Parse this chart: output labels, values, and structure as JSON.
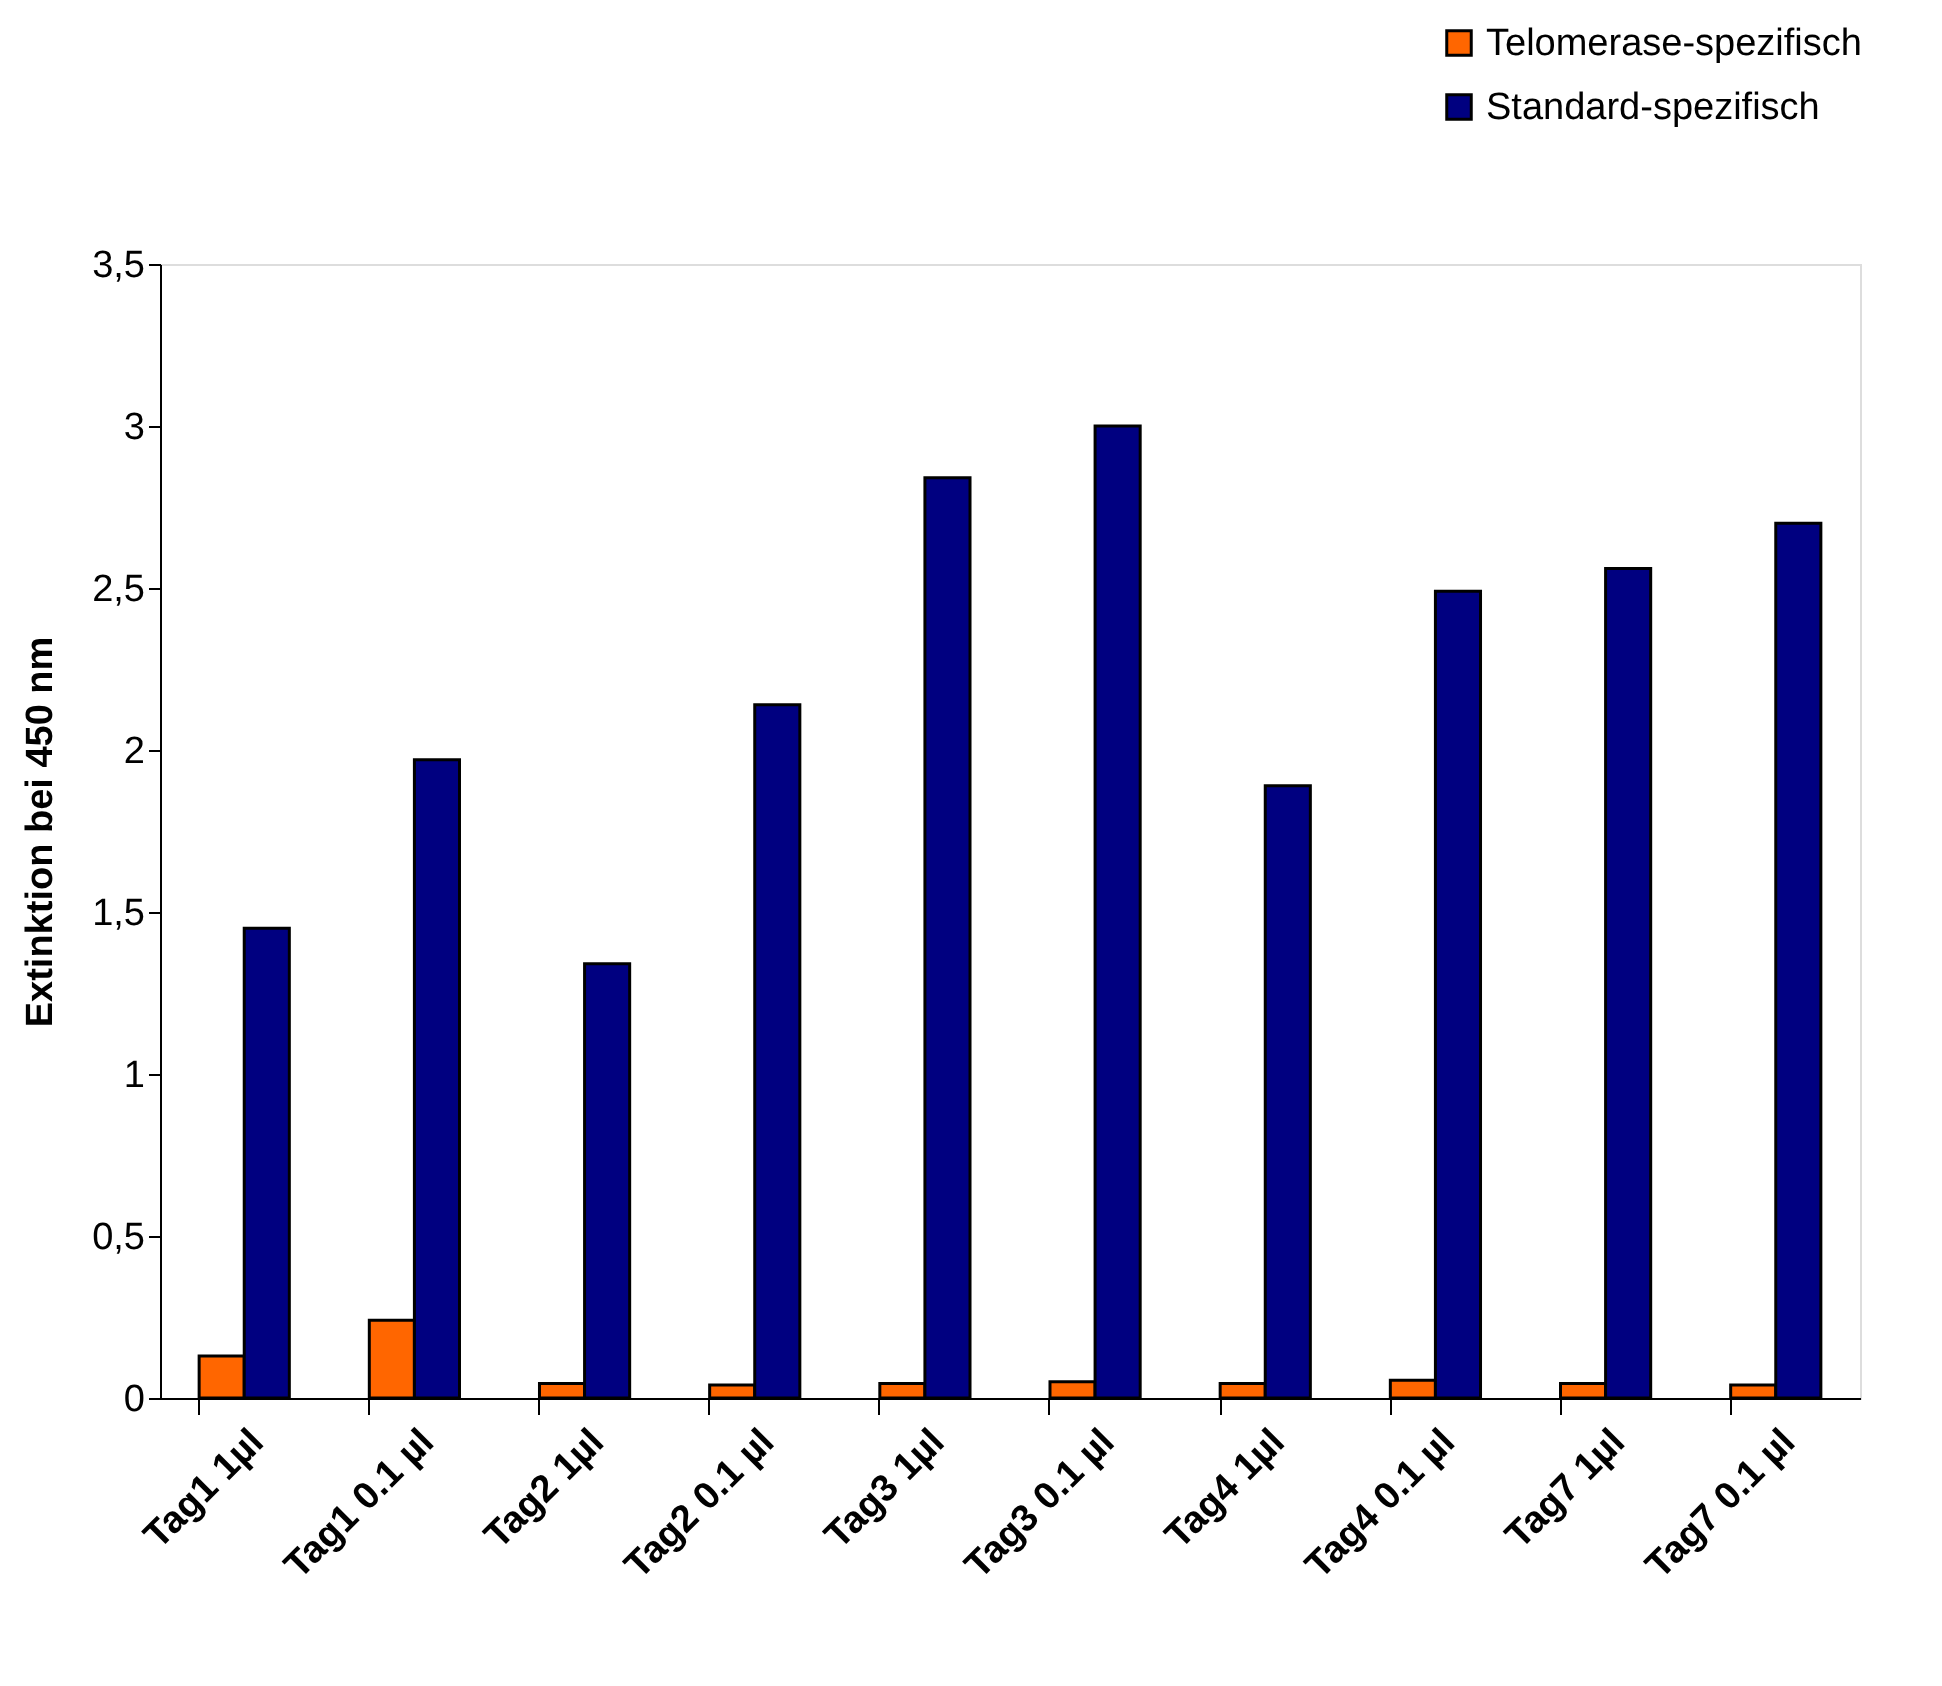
{
  "chart_data": {
    "type": "bar",
    "categories": [
      "Tag1 1µl",
      "Tag1 0.1 µl",
      "Tag2 1µl",
      "Tag2 0.1 µl",
      "Tag3 1µl",
      "Tag3 0.1 µl",
      "Tag4 1µl",
      "Tag4 0.1 µl",
      "Tag7 1µl",
      "Tag7 0.1 µl"
    ],
    "series": [
      {
        "name": "Telomerase-spezifisch",
        "color": "#ff6600",
        "values": [
          0.13,
          0.24,
          0.045,
          0.04,
          0.045,
          0.05,
          0.045,
          0.055,
          0.045,
          0.04
        ]
      },
      {
        "name": "Standard-spezifisch",
        "color": "#000080",
        "values": [
          1.45,
          1.97,
          1.34,
          2.14,
          2.84,
          3.0,
          1.89,
          2.49,
          2.56,
          2.7
        ]
      }
    ],
    "ylabel": "Extinktion bei 450 nm",
    "ylim": [
      0,
      3.5
    ],
    "yticks": [
      0,
      {
        "value": 0.5,
        "label": "0,5"
      },
      1,
      {
        "value": 1.5,
        "label": "1,5"
      },
      2,
      {
        "value": 2.5,
        "label": "2,5"
      },
      3,
      {
        "value": 3.5,
        "label": "3,5"
      }
    ],
    "grid": false,
    "legend": "top right"
  }
}
